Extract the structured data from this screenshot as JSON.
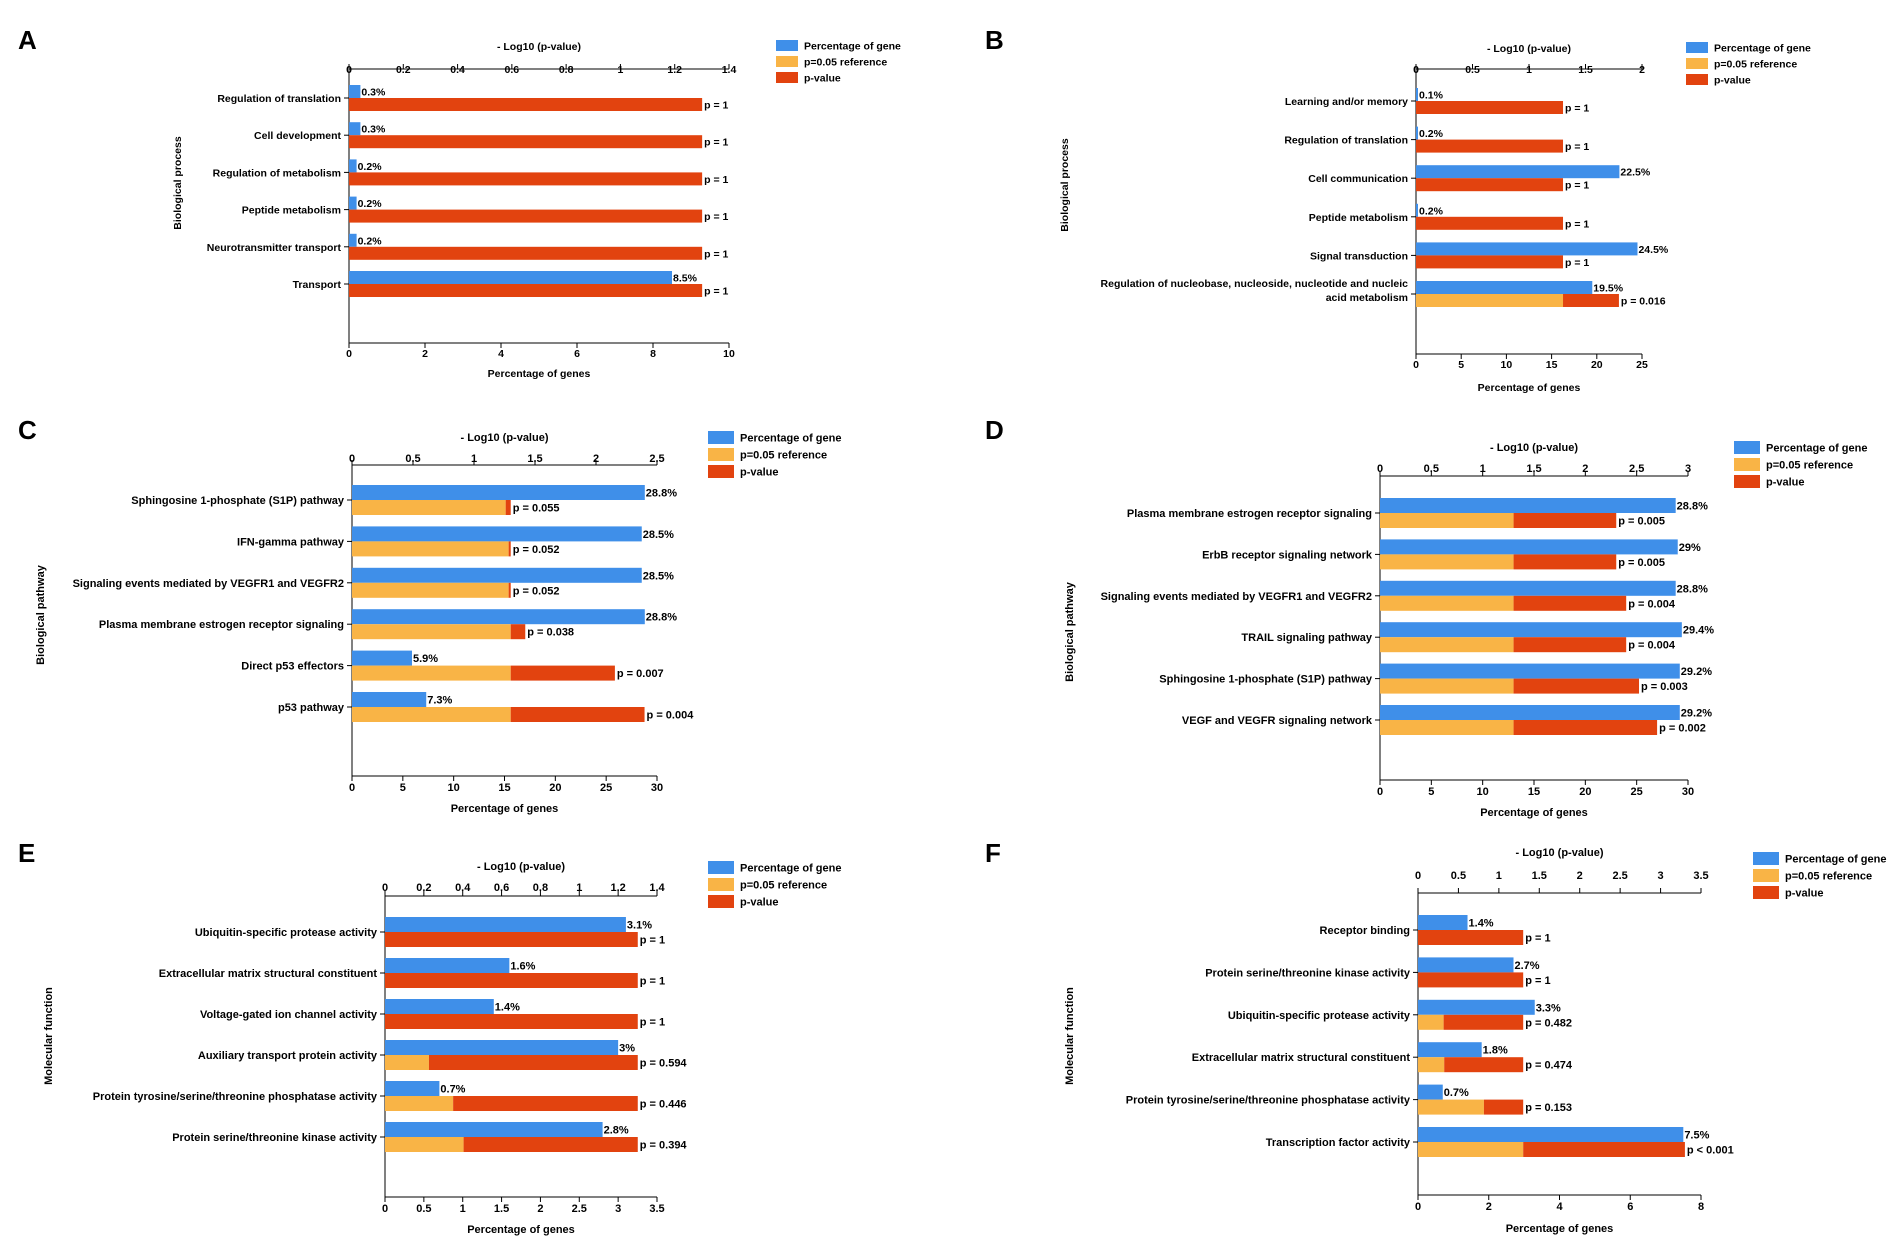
{
  "colors": {
    "percent": "#3f8fe9",
    "reference": "#f9b446",
    "pvalue": "#e2430f",
    "axis": "#000000"
  },
  "legend": [
    "Percentage of gene",
    "p=0.05 reference",
    "p-value"
  ],
  "chart_data": [
    {
      "panel": "A",
      "type": "bar",
      "orientation": "horizontal",
      "title_top": "- Log10 (p-value)",
      "xlabel": "Percentage of genes",
      "ylabel": "Biological process",
      "xlim_percent": [
        0,
        10
      ],
      "xticks_percent": [
        "0",
        "2",
        "4",
        "6",
        "8",
        "10"
      ],
      "xlim_log": [
        0,
        1.4
      ],
      "xticks_log": [
        "0",
        "0.2",
        "0.4",
        "0.6",
        "0.8",
        "1",
        "1.2",
        "1.4"
      ],
      "reference_log": 1.30103,
      "categories": [
        "Regulation of translation",
        "Cell development",
        "Regulation of metabolism",
        "Peptide metabolism",
        "Neurotransmitter transport",
        "Transport"
      ],
      "series": [
        {
          "name": "Percentage of gene",
          "values": [
            0.3,
            0.3,
            0.2,
            0.2,
            0.2,
            8.5
          ],
          "labels": [
            "0.3%",
            "0.3%",
            "0.2%",
            "0.2%",
            "0.2%",
            "8.5%"
          ]
        },
        {
          "name": "p-value",
          "values": [
            1,
            1,
            1,
            1,
            1,
            1
          ],
          "labels": [
            "p = 1",
            "p = 1",
            "p = 1",
            "p = 1",
            "p = 1",
            "p = 1"
          ]
        }
      ]
    },
    {
      "panel": "B",
      "type": "bar",
      "orientation": "horizontal",
      "title_top": "- Log10 (p-value)",
      "xlabel": "Percentage of genes",
      "ylabel": "Biological process",
      "xlim_percent": [
        0,
        25
      ],
      "xticks_percent": [
        "0",
        "5",
        "10",
        "15",
        "20",
        "25"
      ],
      "xlim_log": [
        0,
        2
      ],
      "xticks_log": [
        "0",
        "0.5",
        "1",
        "1.5",
        "2"
      ],
      "reference_log": 1.30103,
      "categories": [
        "Learning and/or memory",
        "Regulation of translation",
        "Cell communication",
        "Peptide metabolism",
        "Signal transduction",
        [
          "Regulation of nucleobase, nucleoside, nucleotide and nucleic",
          "acid metabolism"
        ]
      ],
      "series": [
        {
          "name": "Percentage of gene",
          "values": [
            0.1,
            0.2,
            22.5,
            0.2,
            24.5,
            19.5
          ],
          "labels": [
            "0.1%",
            "0.2%",
            "22.5%",
            "0.2%",
            "24.5%",
            "19.5%"
          ]
        },
        {
          "name": "p-value",
          "values": [
            1,
            1,
            1,
            1,
            1,
            0.016
          ],
          "labels": [
            "p = 1",
            "p = 1",
            "p = 1",
            "p = 1",
            "p = 1",
            "p = 0.016"
          ]
        }
      ]
    },
    {
      "panel": "C",
      "type": "bar",
      "orientation": "horizontal",
      "title_top": "- Log10 (p-value)",
      "xlabel": "Percentage of genes",
      "ylabel": "Biological pathway",
      "xlim_percent": [
        0,
        30
      ],
      "xticks_percent": [
        "0",
        "5",
        "10",
        "15",
        "20",
        "25",
        "30"
      ],
      "xlim_log": [
        0,
        2.5
      ],
      "xticks_log": [
        "0",
        "0.5",
        "1",
        "1.5",
        "2",
        "2.5"
      ],
      "reference_log": 1.30103,
      "categories": [
        "Sphingosine 1-phosphate (S1P) pathway",
        "IFN-gamma pathway",
        "Signaling events mediated by VEGFR1 and VEGFR2",
        "Plasma membrane estrogen receptor signaling",
        "Direct p53 effectors",
        "p53 pathway"
      ],
      "series": [
        {
          "name": "Percentage of gene",
          "values": [
            28.8,
            28.5,
            28.5,
            28.8,
            5.9,
            7.3
          ],
          "labels": [
            "28.8%",
            "28.5%",
            "28.5%",
            "28.8%",
            "5.9%",
            "7.3%"
          ]
        },
        {
          "name": "p-value",
          "values": [
            0.055,
            0.052,
            0.052,
            0.038,
            0.007,
            0.004
          ],
          "labels": [
            "p = 0.055",
            "p = 0.052",
            "p = 0.052",
            "p = 0.038",
            "p = 0.007",
            "p = 0.004"
          ]
        }
      ]
    },
    {
      "panel": "D",
      "type": "bar",
      "orientation": "horizontal",
      "title_top": "- Log10 (p-value)",
      "xlabel": "Percentage of genes",
      "ylabel": "Biological pathway",
      "xlim_percent": [
        0,
        30
      ],
      "xticks_percent": [
        "0",
        "5",
        "10",
        "15",
        "20",
        "25",
        "30"
      ],
      "xlim_log": [
        0,
        3
      ],
      "xticks_log": [
        "0",
        "0.5",
        "1",
        "1.5",
        "2",
        "2.5",
        "3"
      ],
      "reference_log": 1.30103,
      "categories": [
        "Plasma membrane estrogen receptor signaling",
        "ErbB receptor signaling network",
        "Signaling events mediated by VEGFR1 and VEGFR2",
        "TRAIL signaling pathway",
        "Sphingosine 1-phosphate (S1P) pathway",
        "VEGF and VEGFR signaling network"
      ],
      "series": [
        {
          "name": "Percentage of gene",
          "values": [
            28.8,
            29,
            28.8,
            29.4,
            29.2,
            29.2
          ],
          "labels": [
            "28.8%",
            "29%",
            "28.8%",
            "29.4%",
            "29.2%",
            "29.2%"
          ]
        },
        {
          "name": "p-value",
          "values": [
            0.005,
            0.005,
            0.004,
            0.004,
            0.003,
            0.002
          ],
          "labels": [
            "p = 0.005",
            "p = 0.005",
            "p = 0.004",
            "p = 0.004",
            "p = 0.003",
            "p = 0.002"
          ]
        }
      ]
    },
    {
      "panel": "E",
      "type": "bar",
      "orientation": "horizontal",
      "title_top": "- Log10 (p-value)",
      "xlabel": "Percentage of genes",
      "ylabel": "Molecular function",
      "xlim_percent": [
        0,
        3.5
      ],
      "xticks_percent": [
        "0",
        "0.5",
        "1",
        "1.5",
        "2",
        "2.5",
        "3",
        "3.5"
      ],
      "xlim_log": [
        0,
        1.4
      ],
      "xticks_log": [
        "0",
        "0.2",
        "0.4",
        "0.6",
        "0.8",
        "1",
        "1.2",
        "1.4"
      ],
      "reference_log": 1.30103,
      "categories": [
        "Ubiquitin-specific protease activity",
        "Extracellular matrix structural constituent",
        "Voltage-gated ion channel activity",
        "Auxiliary transport protein activity",
        "Protein tyrosine/serine/threonine phosphatase activity",
        "Protein serine/threonine kinase activity"
      ],
      "series": [
        {
          "name": "Percentage of gene",
          "values": [
            3.1,
            1.6,
            1.4,
            3,
            0.7,
            2.8
          ],
          "labels": [
            "3.1%",
            "1.6%",
            "1.4%",
            "3%",
            "0.7%",
            "2.8%"
          ]
        },
        {
          "name": "p-value",
          "values": [
            1,
            1,
            1,
            0.594,
            0.446,
            0.394
          ],
          "labels": [
            "p = 1",
            "p = 1",
            "p = 1",
            "p = 0.594",
            "p = 0.446",
            "p = 0.394"
          ]
        }
      ]
    },
    {
      "panel": "F",
      "type": "bar",
      "orientation": "horizontal",
      "title_top": "- Log10 (p-value)",
      "xlabel": "Percentage of genes",
      "ylabel": "Molecular function",
      "xlim_percent": [
        0,
        8
      ],
      "xticks_percent": [
        "0",
        "2",
        "4",
        "6",
        "8"
      ],
      "xlim_log": [
        0,
        3.5
      ],
      "xticks_log": [
        "0",
        "0.5",
        "1",
        "1.5",
        "2",
        "2.5",
        "3",
        "3.5"
      ],
      "reference_log": 1.30103,
      "categories": [
        "Receptor binding",
        "Protein serine/threonine kinase activity",
        "Ubiquitin-specific protease activity",
        "Extracellular matrix structural constituent",
        "Protein tyrosine/serine/threonine phosphatase activity",
        "Transcription factor activity"
      ],
      "series": [
        {
          "name": "Percentage of gene",
          "values": [
            1.4,
            2.7,
            3.3,
            1.8,
            0.7,
            7.5
          ],
          "labels": [
            "1.4%",
            "2.7%",
            "3.3%",
            "1.8%",
            "0.7%",
            "7.5%"
          ]
        },
        {
          "name": "p-value",
          "values": [
            1,
            1,
            0.482,
            0.474,
            0.153,
            0.0005
          ],
          "labels": [
            "p = 1",
            "p = 1",
            "p = 0.482",
            "p = 0.474",
            "p = 0.153",
            "p < 0.001"
          ]
        }
      ]
    }
  ]
}
